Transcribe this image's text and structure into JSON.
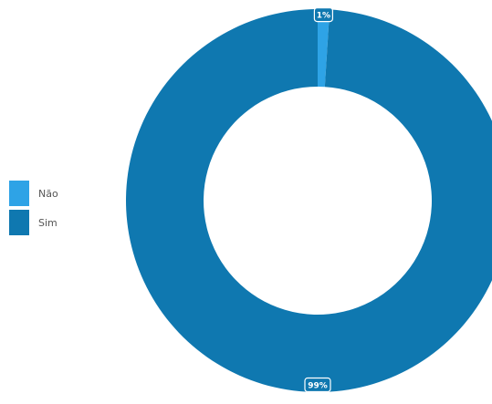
{
  "chart_data": {
    "type": "pie",
    "variant": "donut",
    "categories": [
      "Não",
      "Sim"
    ],
    "values": [
      1,
      99
    ],
    "data_labels": [
      "1%",
      "99%"
    ],
    "colors": [
      "#2ea3e6",
      "#0f78b0"
    ],
    "legend_position": "left"
  }
}
